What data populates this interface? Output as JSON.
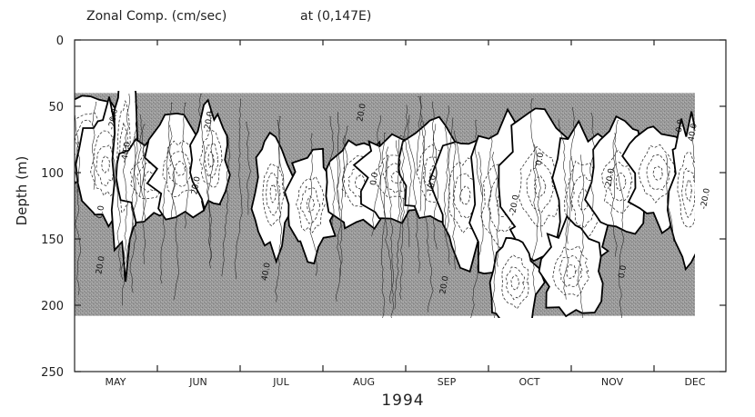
{
  "chart_data": {
    "type": "heatmap",
    "title": "Zonal Comp. (cm/sec)",
    "subtitle": "at (0,147E)",
    "ylabel": "Depth  (m)",
    "xlabel": "1994",
    "yticks": [
      0,
      50,
      100,
      150,
      200,
      250
    ],
    "ylim": [
      0,
      250
    ],
    "y_inverted": true,
    "x_categories": [
      "MAY",
      "JUN",
      "JUL",
      "AUG",
      "SEP",
      "OCT",
      "NOV",
      "DEC"
    ],
    "data_depth_range": [
      40,
      208
    ],
    "shading": "positive (eastward) values shaded gray; negative (westward) values white with dashed contours",
    "zero_contour_style": "thick solid",
    "contour_labels": [
      {
        "text": "0.0",
        "month": "MAY",
        "depth": 130,
        "sign": "zero"
      },
      {
        "text": "-20.0",
        "month": "MAY",
        "depth": 60,
        "sign": "negative"
      },
      {
        "text": "-40.0",
        "month": "MAY",
        "depth": 85,
        "sign": "negative"
      },
      {
        "text": "20.0",
        "month": "MAY",
        "depth": 170,
        "sign": "positive"
      },
      {
        "text": "20.0",
        "month": "JUN",
        "depth": 110,
        "sign": "positive"
      },
      {
        "text": "-20.0",
        "month": "JUN",
        "depth": 62,
        "sign": "negative"
      },
      {
        "text": "40.0",
        "month": "JUL",
        "depth": 175,
        "sign": "positive"
      },
      {
        "text": "20.0",
        "month": "AUG",
        "depth": 55,
        "sign": "positive"
      },
      {
        "text": "0.0",
        "month": "AUG",
        "depth": 105,
        "sign": "zero"
      },
      {
        "text": "-10.0",
        "month": "SEP",
        "depth": 110,
        "sign": "negative"
      },
      {
        "text": "20.0",
        "month": "SEP",
        "depth": 185,
        "sign": "positive"
      },
      {
        "text": "0.0",
        "month": "OCT",
        "depth": 90,
        "sign": "zero"
      },
      {
        "text": "-20.0",
        "month": "OCT",
        "depth": 125,
        "sign": "negative"
      },
      {
        "text": "-20.0",
        "month": "NOV",
        "depth": 105,
        "sign": "negative"
      },
      {
        "text": "0.0",
        "month": "NOV",
        "depth": 175,
        "sign": "zero"
      },
      {
        "text": "0.0",
        "month": "DEC",
        "depth": 65,
        "sign": "zero"
      },
      {
        "text": "40.0",
        "month": "DEC",
        "depth": 70,
        "sign": "positive"
      },
      {
        "text": "-20.0",
        "month": "DEC",
        "depth": 120,
        "sign": "negative"
      }
    ]
  },
  "colors": {
    "positive_fill": "#9a9a9a",
    "positive_fill_alt": "#8a8a8a",
    "negative_fill": "#ffffff",
    "contour": "#000000",
    "frame": "#222222"
  }
}
